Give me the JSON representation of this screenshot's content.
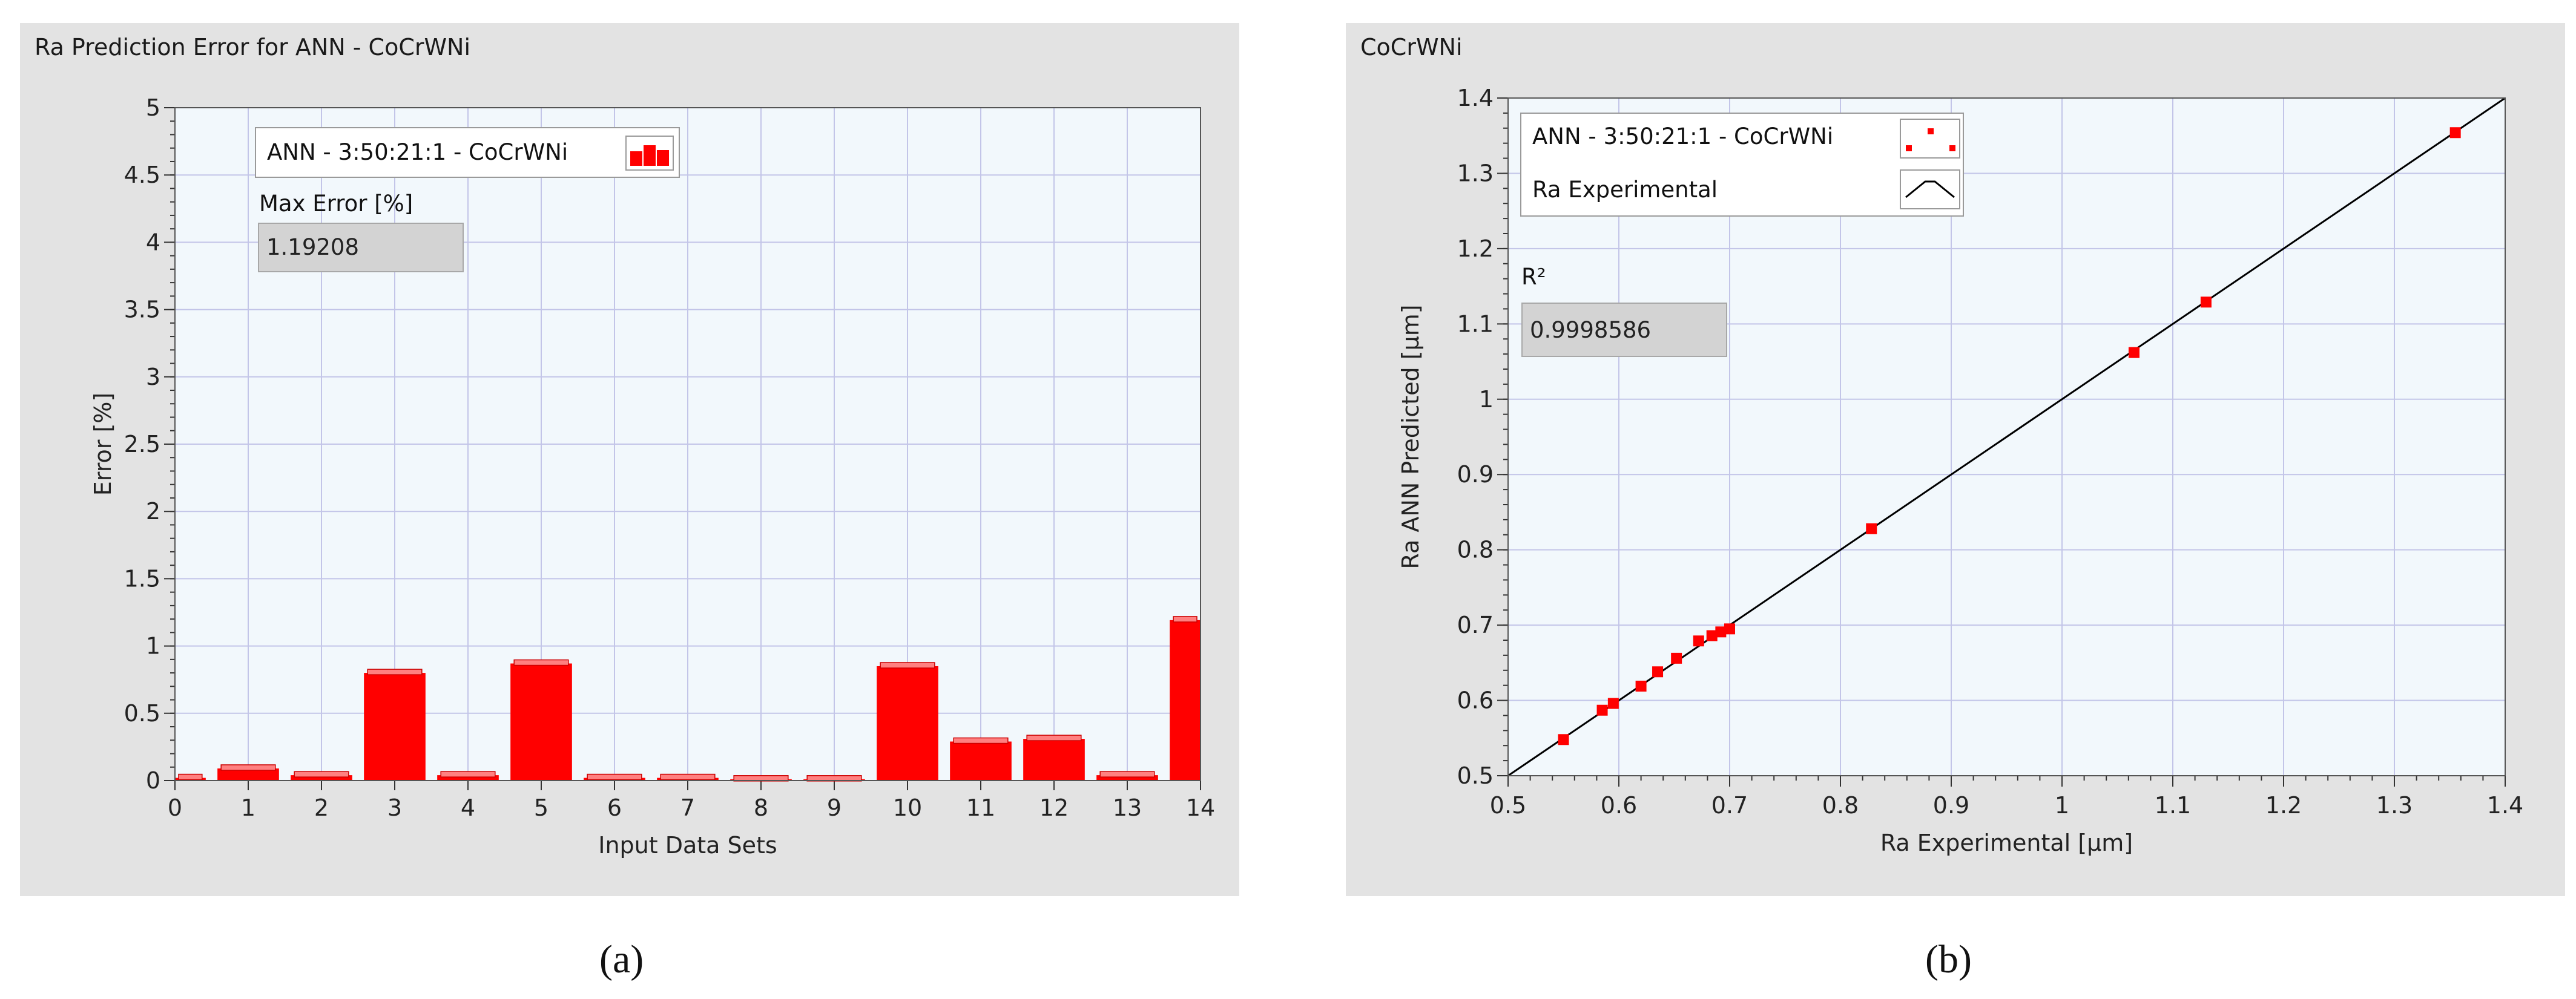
{
  "colors": {
    "panel_bg": "#e3e3e3",
    "plot_bg": "#f2f8fc",
    "grid": "#c3c5e8",
    "bar": "#ff0000",
    "line": "#000000"
  },
  "panel_a": {
    "title": "Ra Prediction Error for ANN - CoCrWNi",
    "legend_label": "ANN - 3:50:21:1 - CoCrWNi",
    "legend_icon": "bar-plot-icon",
    "indicator_label": "Max Error [%]",
    "indicator_value": "1.19208",
    "caption": "(a)"
  },
  "panel_b": {
    "title": "CoCrWNi",
    "legend_label_1": "ANN - 3:50:21:1 - CoCrWNi",
    "legend_icon_1": "scatter-points-icon",
    "legend_label_2": "Ra Experimental",
    "legend_icon_2": "line-plot-icon",
    "indicator_label": "R²",
    "indicator_value": "0.9998586",
    "caption": "(b)"
  },
  "chart_data": [
    {
      "type": "bar",
      "title": "Ra Prediction Error for ANN - CoCrWNi",
      "xlabel": "Input Data Sets",
      "ylabel": "Error [%]",
      "xlim": [
        0,
        14
      ],
      "ylim": [
        0,
        5
      ],
      "grid": true,
      "legend_position": "top-left",
      "xticks": [
        "0",
        "1",
        "2",
        "3",
        "4",
        "5",
        "6",
        "7",
        "8",
        "9",
        "10",
        "11",
        "12",
        "13",
        "14"
      ],
      "yticks": [
        "0",
        "0.5",
        "1",
        "1.5",
        "2",
        "2.5",
        "3",
        "3.5",
        "4",
        "4.5",
        "5"
      ],
      "categories": [
        0,
        1,
        2,
        3,
        4,
        5,
        6,
        7,
        8,
        9,
        10,
        11,
        12,
        13,
        14
      ],
      "series": [
        {
          "name": "ANN - 3:50:21:1 - CoCrWNi",
          "values": [
            0.02,
            0.09,
            0.04,
            0.8,
            0.04,
            0.87,
            0.02,
            0.02,
            0.01,
            0.01,
            0.85,
            0.29,
            0.31,
            0.04,
            1.19208
          ]
        }
      ]
    },
    {
      "type": "scatter",
      "title": "CoCrWNi",
      "xlabel": "Ra Experimental  [µm]",
      "ylabel": "Ra ANN Predicted  [µm]",
      "xlim": [
        0.5,
        1.4
      ],
      "ylim": [
        0.5,
        1.4
      ],
      "grid": true,
      "legend_position": "top-left",
      "xticks": [
        "0.5",
        "0.6",
        "0.7",
        "0.8",
        "0.9",
        "1",
        "1.1",
        "1.2",
        "1.3",
        "1.4"
      ],
      "yticks": [
        "0.5",
        "0.6",
        "0.7",
        "0.8",
        "0.9",
        "1",
        "1.1",
        "1.2",
        "1.3",
        "1.4"
      ],
      "series": [
        {
          "name": "ANN - 3:50:21:1 - CoCrWNi",
          "type": "scatter",
          "x": [
            0.55,
            0.585,
            0.595,
            0.62,
            0.635,
            0.652,
            0.672,
            0.684,
            0.692,
            0.7,
            0.828,
            1.065,
            1.13,
            1.355
          ],
          "y": [
            0.548,
            0.587,
            0.596,
            0.619,
            0.638,
            0.656,
            0.679,
            0.686,
            0.691,
            0.695,
            0.828,
            1.062,
            1.129,
            1.354
          ]
        },
        {
          "name": "Ra Experimental",
          "type": "line",
          "x": [
            0.5,
            1.4
          ],
          "y": [
            0.5,
            1.4
          ]
        }
      ]
    }
  ]
}
